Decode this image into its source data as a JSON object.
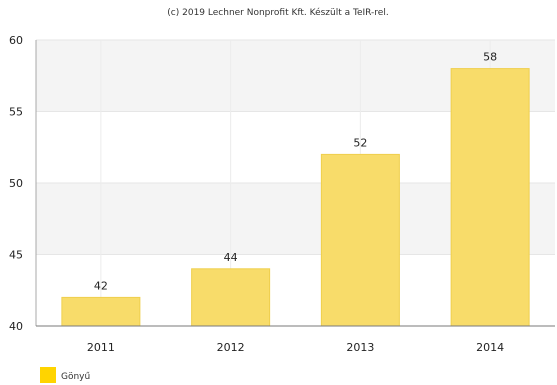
{
  "credit": "(c) 2019 Lechner Nonprofit Kft. Készült a TeIR-rel.",
  "chart_data": {
    "type": "bar",
    "categories": [
      "2011",
      "2012",
      "2013",
      "2014"
    ],
    "series": [
      {
        "name": "Gönyű",
        "values": [
          42,
          44,
          52,
          58
        ],
        "color": "#F8DC6A"
      }
    ],
    "ylim": [
      40,
      60
    ],
    "yticks": [
      40,
      45,
      50,
      55,
      60
    ],
    "grid": true,
    "legend_position": "bottom-left",
    "data_labels": true
  }
}
